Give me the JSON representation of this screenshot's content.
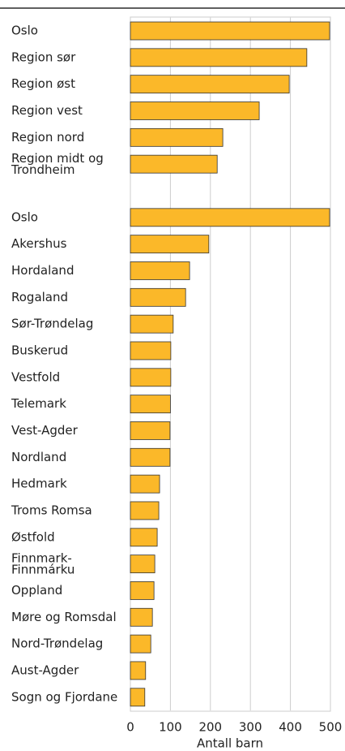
{
  "chart_data": {
    "type": "barh",
    "xlabel": "Antall barn",
    "categories": [
      "Oslo",
      "Region sør",
      "Region øst",
      "Region vest",
      "Region nord",
      "Region midt og\nTrondheim",
      null,
      "Oslo",
      "Akershus",
      "Hordaland",
      "Rogaland",
      "Sør-Trøndelag",
      "Buskerud",
      "Vestfold",
      "Telemark",
      "Vest-Agder",
      "Nordland",
      "Hedmark",
      "Troms Romsa",
      "Østfold",
      "Finnmark-\nFinnmárku",
      "Oppland",
      "Møre og Romsdal",
      "Nord-Trøndelag",
      "Aust-Agder",
      "Sogn og Fjordane"
    ],
    "values": [
      498,
      441,
      397,
      322,
      231,
      217,
      null,
      498,
      196,
      148,
      138,
      107,
      101,
      101,
      100,
      99,
      99,
      73,
      71,
      67,
      61,
      59,
      55,
      51,
      38,
      36
    ],
    "color": "#fbb829",
    "xlim": [
      0,
      500
    ],
    "xticks": [
      0,
      100,
      200,
      300,
      400,
      500
    ],
    "grid": true
  }
}
